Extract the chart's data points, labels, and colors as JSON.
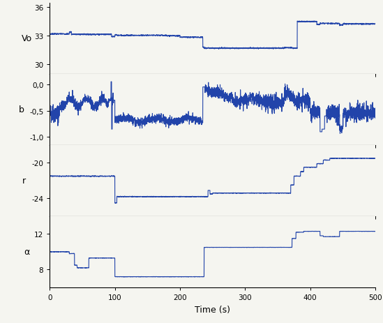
{
  "line_color": "#2244aa",
  "line_width": 0.8,
  "background_color": "#f5f5f0",
  "xlabel": "Time (s)",
  "xlim": [
    0,
    500
  ],
  "xticks": [
    0,
    100,
    200,
    300,
    400,
    500
  ],
  "Vo_ylim": [
    29.0,
    36.5
  ],
  "Vo_yticks": [
    30,
    33,
    36
  ],
  "Vo_ylabel": "Vo",
  "b_ylim": [
    -1.15,
    0.2
  ],
  "b_yticks": [
    -1.0,
    -0.5,
    0.0
  ],
  "b_ylabel": "b",
  "r_ylim": [
    -26.0,
    -18.0
  ],
  "r_yticks": [
    -24,
    -20
  ],
  "r_ylabel": "r",
  "alpha_ylim": [
    6.0,
    14.0
  ],
  "alpha_yticks": [
    8,
    12
  ],
  "alpha_ylabel": "α"
}
